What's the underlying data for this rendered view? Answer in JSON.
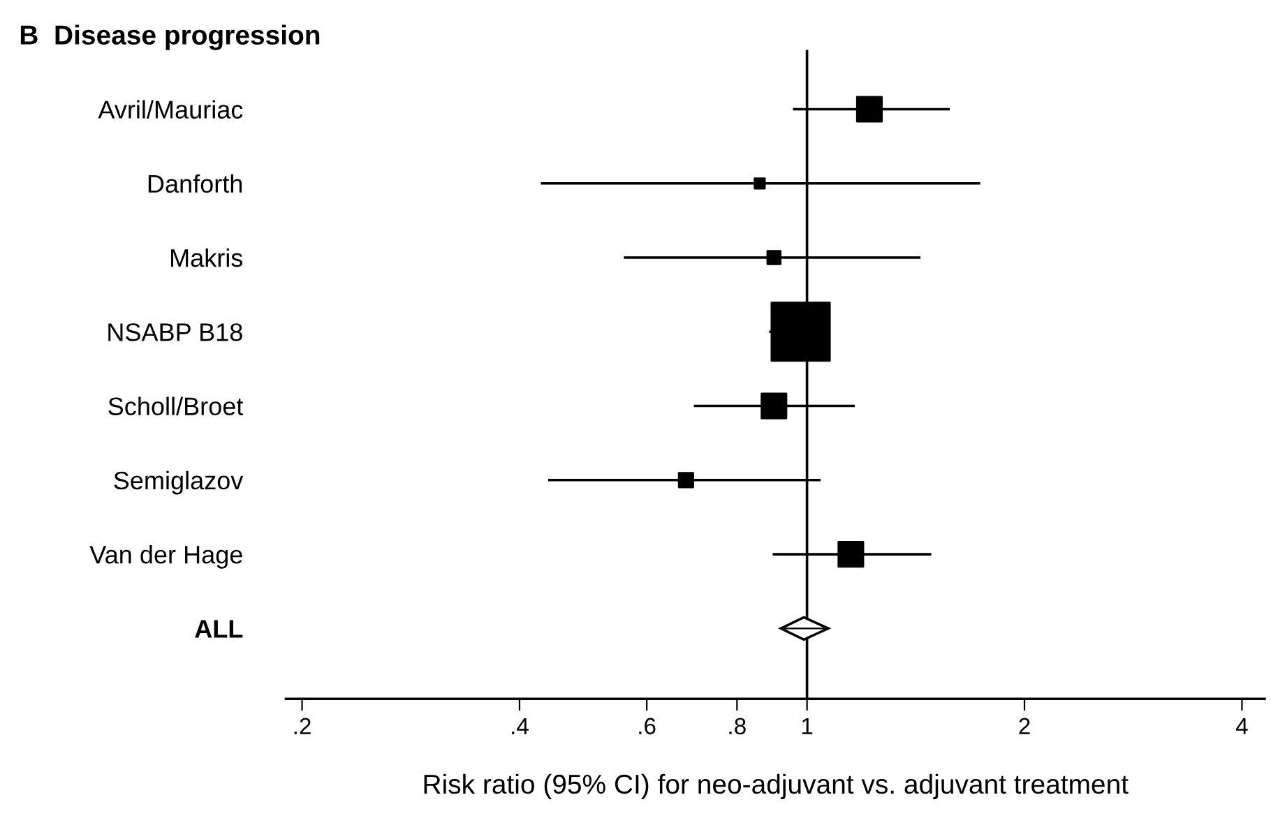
{
  "chart_data": {
    "type": "bubble",
    "orientation": "horizontal",
    "title": "B  Disease progression",
    "xlabel": "Risk ratio (95% CI) for neo-adjuvant vs. adjuvant treatment",
    "log": "x",
    "xlim": [
      0.19,
      4.3
    ],
    "xticks": [
      {
        "value": 0.2,
        "label": ".2"
      },
      {
        "value": 0.4,
        "label": ".4"
      },
      {
        "value": 0.6,
        "label": ".6"
      },
      {
        "value": 0.8,
        "label": ".8"
      },
      1,
      2,
      4
    ],
    "categories": [
      "Avril/Mauriac",
      "Danforth",
      "Makris",
      "NSABP B18",
      "Scholl/Broet",
      "Semiglazov",
      "Van der Hage",
      "ALL"
    ],
    "ref_lines": [
      {
        "axis": "x",
        "value": 1,
        "color": "#000000"
      }
    ],
    "series": [
      {
        "color": "#000000",
        "marker": "square",
        "values": [
          1.22,
          0.86,
          0.9,
          0.98,
          0.9,
          0.68,
          1.15,
          null
        ],
        "errors": [
          [
            0.96,
            1.57
          ],
          [
            0.43,
            1.73
          ],
          [
            0.56,
            1.43
          ],
          [
            0.89,
            1.07
          ],
          [
            0.7,
            1.16
          ],
          [
            0.44,
            1.04
          ],
          [
            0.9,
            1.48
          ],
          null
        ],
        "sizes": [
          0.18,
          0.03,
          0.05,
          1,
          0.18,
          0.06,
          0.18,
          null
        ]
      },
      {
        "type": "scatter",
        "color": "#000000",
        "marker": "diamond",
        "values": [
          null,
          null,
          null,
          null,
          null,
          null,
          null,
          0.99
        ],
        "errors": [
          null,
          null,
          null,
          null,
          null,
          null,
          null,
          [
            0.92,
            1.07
          ]
        ]
      }
    ],
    "grid": false,
    "legend": false
  }
}
